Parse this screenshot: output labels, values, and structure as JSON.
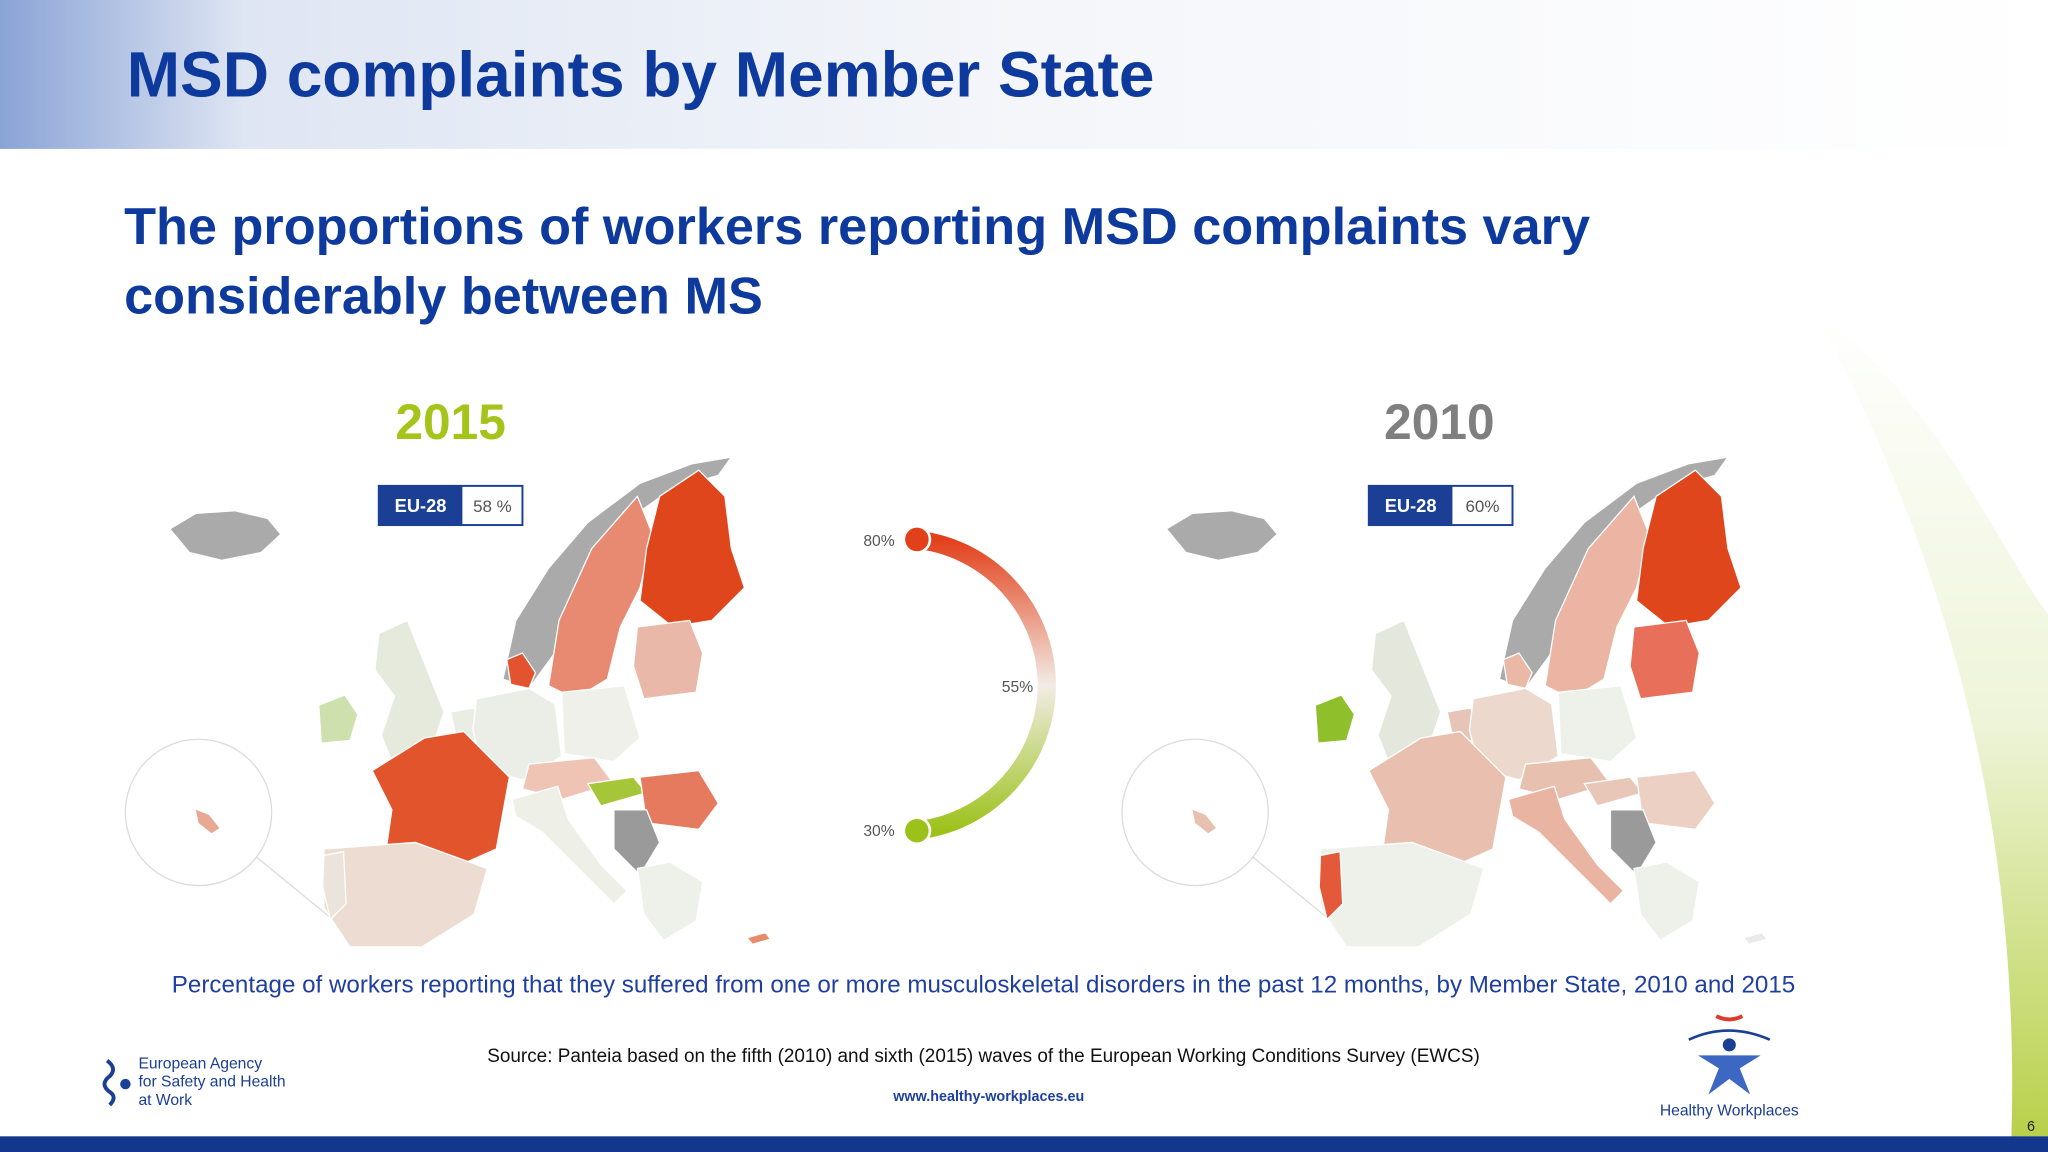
{
  "header": {
    "title": "MSD complaints by Member State"
  },
  "subtitle": "The proportions of workers reporting MSD complaints vary considerably between MS",
  "maps": [
    {
      "year": "2015",
      "badge_label": "EU-28",
      "badge_value": "58 %"
    },
    {
      "year": "2010",
      "badge_label": "EU-28",
      "badge_value": "60%"
    }
  ],
  "legend": {
    "high": "80%",
    "mid": "55%",
    "low": "30%"
  },
  "caption": "Percentage of workers reporting that they suffered from one or more musculoskeletal disorders in the past 12 months, by Member State, 2010 and 2015",
  "source": "Source: Panteia based on the fifth (2010) and sixth (2015) waves of the European Working Conditions Survey (EWCS)",
  "footer": {
    "agency_logo": [
      "European Agency",
      "for Safety and Health",
      "at Work"
    ],
    "url": "www.healthy-workplaces.eu",
    "campaign_logo": "Healthy Workplaces",
    "page_number": "6"
  }
}
